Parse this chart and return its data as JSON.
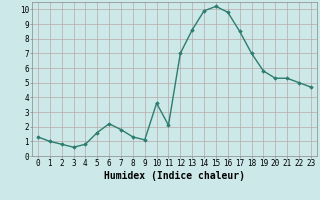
{
  "x": [
    0,
    1,
    2,
    3,
    4,
    5,
    6,
    7,
    8,
    9,
    10,
    11,
    12,
    13,
    14,
    15,
    16,
    17,
    18,
    19,
    20,
    21,
    22,
    23
  ],
  "y": [
    1.3,
    1.0,
    0.8,
    0.6,
    0.8,
    1.6,
    2.2,
    1.8,
    1.3,
    1.1,
    3.6,
    2.1,
    7.0,
    8.6,
    9.9,
    10.2,
    9.8,
    8.5,
    7.0,
    5.8,
    5.3,
    5.3,
    5.0,
    4.7
  ],
  "line_color": "#2d7d6e",
  "marker": "D",
  "marker_size": 1.8,
  "linewidth": 1.0,
  "xlim": [
    -0.5,
    23.5
  ],
  "ylim": [
    0,
    10.5
  ],
  "yticks": [
    0,
    1,
    2,
    3,
    4,
    5,
    6,
    7,
    8,
    9,
    10
  ],
  "xticks": [
    0,
    1,
    2,
    3,
    4,
    5,
    6,
    7,
    8,
    9,
    10,
    11,
    12,
    13,
    14,
    15,
    16,
    17,
    18,
    19,
    20,
    21,
    22,
    23
  ],
  "xlabel": "Humidex (Indice chaleur)",
  "xlabel_fontsize": 7,
  "tick_fontsize": 5.5,
  "bg_color": "#cce8e8",
  "grid_color": "#b8a8a8",
  "spine_color": "#888888"
}
